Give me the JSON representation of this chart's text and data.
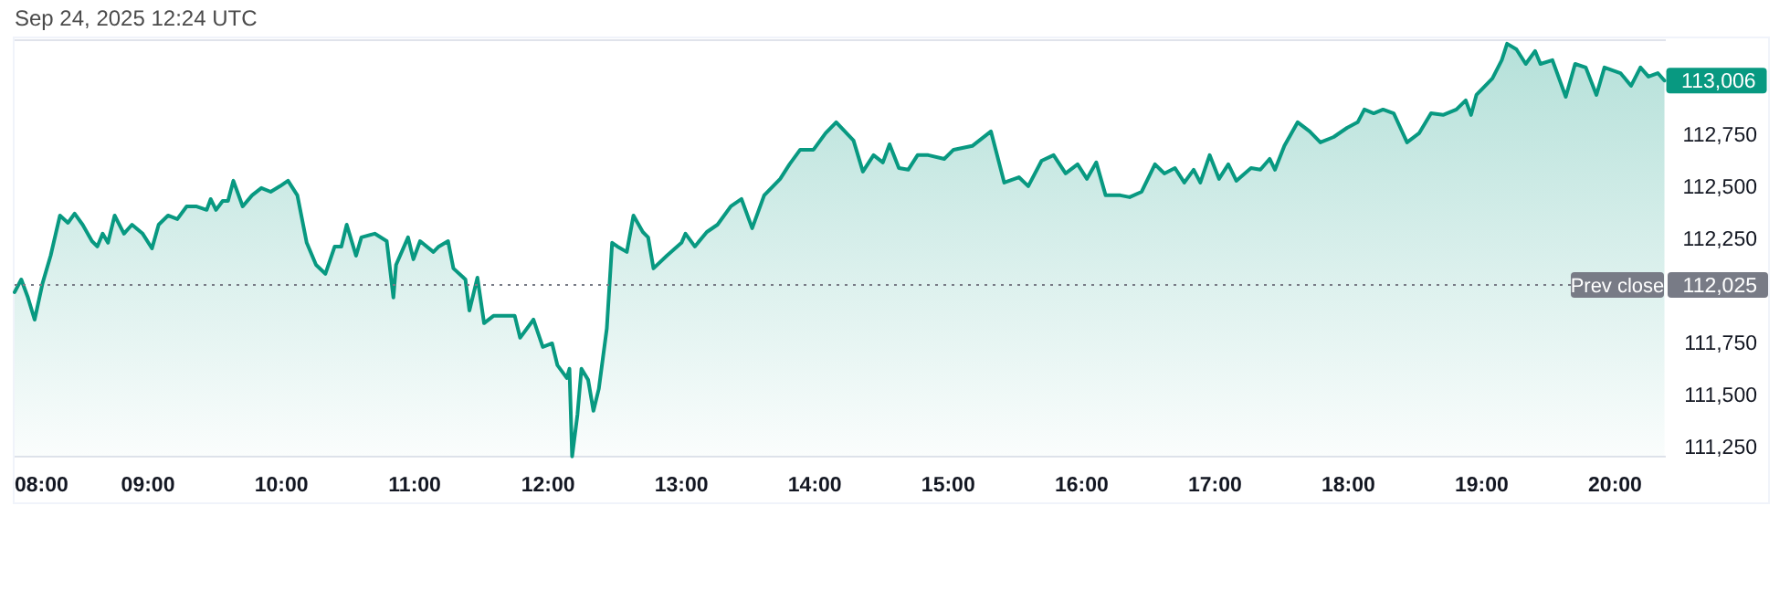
{
  "chart_data": {
    "type": "area",
    "title": "Sep 24, 2025 12:24 UTC",
    "x": [
      8.0,
      8.05,
      8.1,
      8.15,
      8.21,
      8.27,
      8.34,
      8.4,
      8.45,
      8.51,
      8.58,
      8.62,
      8.66,
      8.7,
      8.75,
      8.82,
      8.88,
      8.96,
      9.03,
      9.08,
      9.15,
      9.22,
      9.29,
      9.36,
      9.44,
      9.47,
      9.51,
      9.56,
      9.6,
      9.64,
      9.71,
      9.78,
      9.85,
      9.92,
      9.99,
      10.05,
      10.12,
      10.19,
      10.26,
      10.33,
      10.4,
      10.45,
      10.49,
      10.56,
      10.6,
      10.7,
      10.79,
      10.84,
      10.86,
      10.95,
      10.99,
      11.04,
      11.14,
      11.18,
      11.25,
      11.29,
      11.38,
      11.41,
      11.47,
      11.52,
      11.59,
      11.66,
      11.75,
      11.79,
      11.89,
      11.96,
      12.03,
      12.07,
      12.14,
      12.16,
      12.18,
      12.22,
      12.25,
      12.3,
      12.34,
      12.38,
      12.44,
      12.48,
      12.52,
      12.59,
      12.64,
      12.71,
      12.75,
      12.79,
      12.89,
      13.0,
      13.03,
      13.1,
      13.19,
      13.27,
      13.37,
      13.45,
      13.53,
      13.62,
      13.74,
      13.81,
      13.89,
      13.99,
      14.08,
      14.16,
      14.29,
      14.36,
      14.44,
      14.51,
      14.56,
      14.63,
      14.7,
      14.77,
      14.85,
      14.97,
      15.04,
      15.18,
      15.32,
      15.42,
      15.53,
      15.6,
      15.7,
      15.79,
      15.88,
      15.97,
      16.04,
      16.11,
      16.18,
      16.29,
      16.36,
      16.45,
      16.55,
      16.62,
      16.7,
      16.77,
      16.84,
      16.89,
      16.96,
      17.03,
      17.1,
      17.16,
      17.27,
      17.34,
      17.41,
      17.45,
      17.52,
      17.62,
      17.71,
      17.79,
      17.89,
      17.99,
      18.07,
      18.12,
      18.19,
      18.26,
      18.34,
      18.44,
      18.53,
      18.62,
      18.71,
      18.81,
      18.88,
      18.92,
      18.96,
      19.08,
      19.15,
      19.19,
      19.26,
      19.33,
      19.4,
      19.44,
      19.53,
      19.63,
      19.7,
      19.78,
      19.86,
      19.92,
      20.04,
      20.12,
      20.19,
      20.25,
      20.32,
      20.37
    ],
    "series": [
      {
        "color": "#089981",
        "values": [
          111990,
          112051,
          111964,
          111858,
          112034,
          112165,
          112358,
          112323,
          112367,
          112314,
          112235,
          112209,
          112271,
          112227,
          112358,
          112271,
          112314,
          112271,
          112200,
          112314,
          112358,
          112341,
          112402,
          112402,
          112385,
          112437,
          112385,
          112428,
          112428,
          112525,
          112402,
          112455,
          112490,
          112472,
          112499,
          112525,
          112455,
          112227,
          112121,
          112078,
          112209,
          112209,
          112314,
          112165,
          112253,
          112271,
          112235,
          111964,
          112121,
          112253,
          112148,
          112235,
          112183,
          112209,
          112235,
          112104,
          112051,
          111902,
          112060,
          111841,
          111876,
          111876,
          111876,
          111771,
          111858,
          111727,
          111744,
          111639,
          111578,
          111622,
          111201,
          111402,
          111622,
          111569,
          111420,
          111525,
          111815,
          112227,
          112209,
          112183,
          112358,
          112279,
          112253,
          112104,
          112165,
          112227,
          112271,
          112209,
          112279,
          112314,
          112402,
          112437,
          112297,
          112455,
          112534,
          112604,
          112674,
          112674,
          112753,
          112806,
          112718,
          112569,
          112648,
          112613,
          112700,
          112586,
          112578,
          112648,
          112648,
          112630,
          112674,
          112692,
          112762,
          112516,
          112542,
          112499,
          112621,
          112648,
          112560,
          112604,
          112534,
          112613,
          112455,
          112455,
          112446,
          112472,
          112604,
          112560,
          112586,
          112516,
          112578,
          112516,
          112648,
          112534,
          112604,
          112525,
          112586,
          112578,
          112630,
          112578,
          112692,
          112806,
          112762,
          112709,
          112735,
          112779,
          112806,
          112867,
          112849,
          112867,
          112849,
          112709,
          112753,
          112849,
          112841,
          112867,
          112911,
          112841,
          112937,
          113016,
          113104,
          113183,
          113156,
          113086,
          113148,
          113086,
          113104,
          112928,
          113086,
          113069,
          112937,
          113069,
          113042,
          112981,
          113069,
          113025,
          113042,
          113006
        ]
      }
    ],
    "xlim": [
      8,
      20.38
    ],
    "ylim": [
      111200,
      113200
    ],
    "xticks": [
      {
        "value": 8,
        "label": "08:00"
      },
      {
        "value": 9,
        "label": "09:00"
      },
      {
        "value": 10,
        "label": "10:00"
      },
      {
        "value": 11,
        "label": "11:00"
      },
      {
        "value": 12,
        "label": "12:00"
      },
      {
        "value": 13,
        "label": "13:00"
      },
      {
        "value": 14,
        "label": "14:00"
      },
      {
        "value": 15,
        "label": "15:00"
      },
      {
        "value": 16,
        "label": "16:00"
      },
      {
        "value": 17,
        "label": "17:00"
      },
      {
        "value": 18,
        "label": "18:00"
      },
      {
        "value": 19,
        "label": "19:00"
      },
      {
        "value": 20,
        "label": "20:00"
      }
    ],
    "yticks": [
      {
        "value": 111250,
        "label": "111,250"
      },
      {
        "value": 111500,
        "label": "111,500"
      },
      {
        "value": 111750,
        "label": "111,750"
      },
      {
        "value": 112025,
        "label": "112,025"
      },
      {
        "value": 112250,
        "label": "112,250"
      },
      {
        "value": 112500,
        "label": "112,500"
      },
      {
        "value": 112750,
        "label": "112,750"
      }
    ],
    "ref_lines": [
      {
        "axis": "y",
        "value": 112025,
        "label": "Prev close",
        "color": "#787b86",
        "line_style": "dotted"
      }
    ],
    "annotations": [
      {
        "text": "113,006",
        "x": 20.37,
        "y": 113006
      }
    ],
    "grid": false
  }
}
